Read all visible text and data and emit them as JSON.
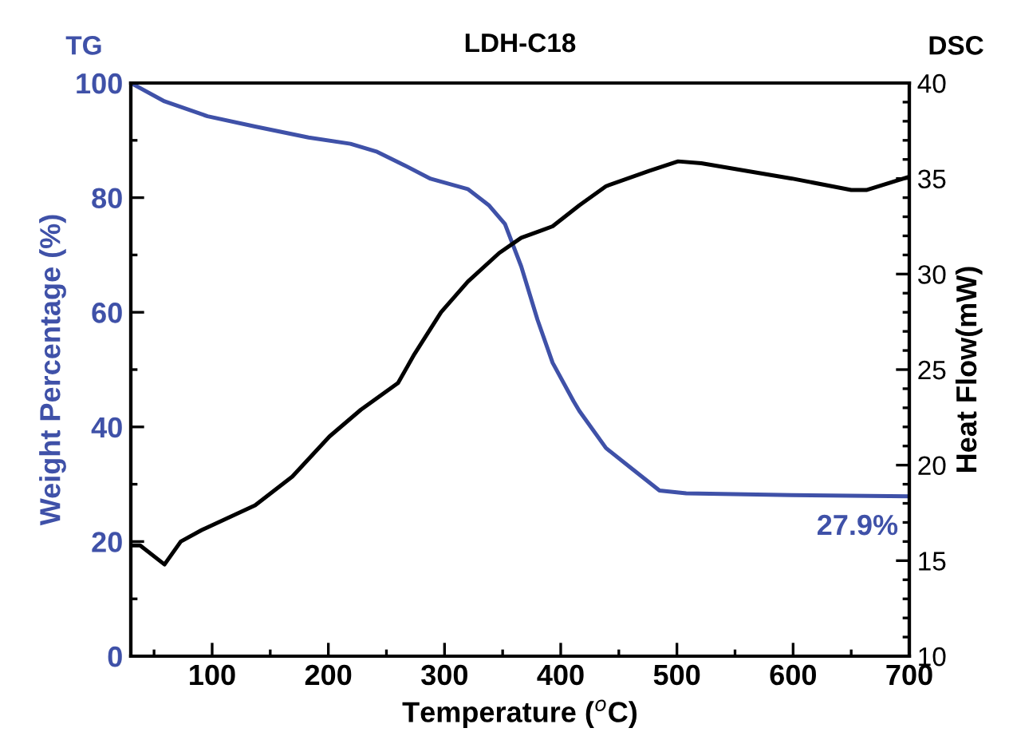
{
  "chart_data": {
    "type": "line",
    "title": "LDH-C18",
    "xlabel": "Temperature ($^{o}$C)",
    "ylabel": "Weight Percentage (%)",
    "y2label": "Heat Flow(mW)",
    "xlim": [
      30,
      700
    ],
    "xticks": [
      100,
      200,
      300,
      400,
      500,
      600,
      700
    ],
    "ylim": [
      0,
      100
    ],
    "yticks": [
      0,
      20,
      40,
      60,
      80,
      100
    ],
    "y2lim": [
      10,
      40
    ],
    "y2ticks": [
      10,
      15,
      20,
      25,
      30,
      35,
      40
    ],
    "grid": false,
    "legend": false,
    "series": [
      {
        "name": "TG",
        "color": "#3f51a8",
        "x": [
          30,
          59,
          96,
          137,
          183,
          219,
          242,
          265,
          288,
          320,
          338,
          352,
          366,
          380,
          393,
          411,
          416,
          439,
          462,
          485,
          508,
          599,
          700
        ],
        "values": [
          100,
          96.8,
          94.2,
          92.4,
          90.5,
          89.4,
          88.0,
          85.7,
          83.3,
          81.5,
          78.7,
          75.4,
          68.0,
          58.7,
          51.2,
          44.5,
          42.8,
          36.3,
          32.6,
          28.9,
          28.4,
          28.1,
          27.9
        ]
      },
      {
        "name": "DSC",
        "color": "#000000",
        "axis": "y2",
        "x": [
          30,
          38,
          59,
          73,
          91,
          137,
          169,
          201,
          228,
          260,
          274,
          297,
          320,
          347,
          366,
          384,
          393,
          416,
          439,
          476,
          501,
          521,
          599,
          650,
          663,
          700
        ],
        "values": [
          15.8,
          15.8,
          14.8,
          16.0,
          16.6,
          17.9,
          19.4,
          21.5,
          22.9,
          24.3,
          25.8,
          28.0,
          29.6,
          31.1,
          31.9,
          32.3,
          32.5,
          33.6,
          34.6,
          35.4,
          35.9,
          35.8,
          35.0,
          34.4,
          34.4,
          35.1
        ]
      }
    ],
    "annotations": [
      {
        "text": "27.9%",
        "x": 700,
        "y": 27.9
      }
    ]
  }
}
